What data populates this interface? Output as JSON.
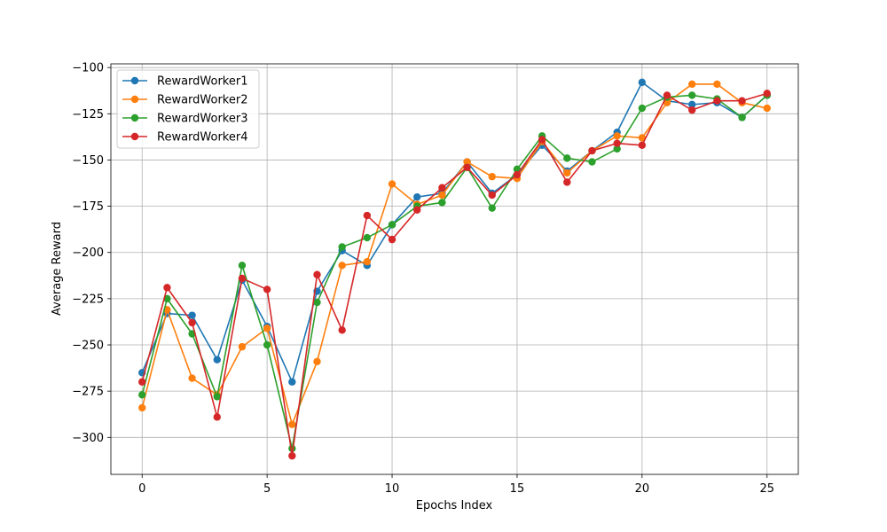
{
  "chart_data": {
    "type": "line",
    "title": "",
    "xlabel": "Epochs Index",
    "ylabel": "Average Reward",
    "xlim": [
      -1.25,
      26.25
    ],
    "ylim": [
      -320,
      -98
    ],
    "xticks": [
      0,
      5,
      10,
      15,
      20,
      25
    ],
    "yticks": [
      -300,
      -275,
      -250,
      -225,
      -200,
      -175,
      -150,
      -125,
      -100
    ],
    "grid": true,
    "legend_position": "top-left",
    "x": [
      0,
      1,
      2,
      3,
      4,
      5,
      6,
      7,
      8,
      9,
      10,
      11,
      12,
      13,
      14,
      15,
      16,
      17,
      18,
      19,
      20,
      21,
      22,
      23,
      24,
      25
    ],
    "series": [
      {
        "name": "RewardWorker1",
        "color": "#1f77b4",
        "values": [
          -265,
          -233,
          -234,
          -258,
          -215,
          -240,
          -270,
          -221,
          -199,
          -207,
          -185,
          -170,
          -168,
          -151,
          -168,
          -158,
          -142,
          -156,
          -145,
          -135,
          -108,
          -118,
          -120,
          -119,
          -127,
          -115
        ]
      },
      {
        "name": "RewardWorker2",
        "color": "#ff7f0e",
        "values": [
          -284,
          -231,
          -268,
          -277,
          -251,
          -241,
          -293,
          -259,
          -207,
          -205,
          -163,
          -174,
          -169,
          -151,
          -159,
          -160,
          -140,
          -157,
          -145,
          -137,
          -138,
          -119,
          -109,
          -109,
          -119,
          -122
        ]
      },
      {
        "name": "RewardWorker3",
        "color": "#2ca02c",
        "values": [
          -277,
          -225,
          -244,
          -278,
          -207,
          -250,
          -306,
          -227,
          -197,
          -192,
          -185,
          -175,
          -173,
          -154,
          -176,
          -155,
          -137,
          -149,
          -151,
          -144,
          -122,
          -116,
          -115,
          -117,
          -127,
          -115
        ]
      },
      {
        "name": "RewardWorker4",
        "color": "#d62728",
        "values": [
          -270,
          -219,
          -238,
          -289,
          -214,
          -220,
          -310,
          -212,
          -242,
          -180,
          -193,
          -177,
          -165,
          -154,
          -169,
          -158,
          -139,
          -162,
          -145,
          -141,
          -142,
          -115,
          -123,
          -118,
          -118,
          -114
        ]
      }
    ]
  }
}
